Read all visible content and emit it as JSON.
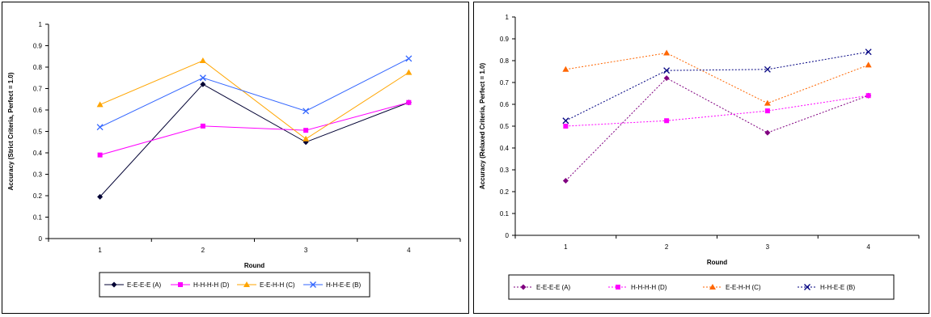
{
  "chart_data": [
    {
      "type": "line",
      "title": "",
      "xlabel": "Round",
      "ylabel": "Accuracy (Strict Criteria, Perfect = 1.0)",
      "categories": [
        "1",
        "2",
        "3",
        "4"
      ],
      "ylim": [
        0,
        1
      ],
      "yticks": [
        "0",
        "0.1",
        "0.2",
        "0.3",
        "0.4",
        "0.5",
        "0.6",
        "0.7",
        "0.8",
        "0.9",
        "1"
      ],
      "grid": false,
      "legend": "bottom",
      "series": [
        {
          "name": "E-E-E-E (A)",
          "values": [
            0.195,
            0.72,
            0.45,
            0.635
          ],
          "color": "#000033",
          "marker": "diamond",
          "dash": "solid"
        },
        {
          "name": "H-H-H-H (D)",
          "values": [
            0.39,
            0.525,
            0.505,
            0.635
          ],
          "color": "#FF00FF",
          "marker": "square",
          "dash": "solid"
        },
        {
          "name": "E-E-H-H (C)",
          "values": [
            0.625,
            0.83,
            0.465,
            0.775
          ],
          "color": "#FFA500",
          "marker": "triangle",
          "dash": "solid"
        },
        {
          "name": "H-H-E-E (B)",
          "values": [
            0.52,
            0.75,
            0.595,
            0.84
          ],
          "color": "#3366FF",
          "marker": "x",
          "dash": "solid"
        }
      ]
    },
    {
      "type": "line",
      "title": "",
      "xlabel": "Round",
      "ylabel": "Accuracy (Relaxed Criteria, Perfect = 1.0)",
      "categories": [
        "1",
        "2",
        "3",
        "4"
      ],
      "ylim": [
        0,
        1
      ],
      "yticks": [
        "0",
        "0.1",
        "0.2",
        "0.3",
        "0.4",
        "0.5",
        "0.6",
        "0.7",
        "0.8",
        "0.9",
        "1"
      ],
      "grid": false,
      "legend": "bottom",
      "series": [
        {
          "name": "E-E-E-E (A)",
          "values": [
            0.25,
            0.72,
            0.47,
            0.64
          ],
          "color": "#800080",
          "marker": "diamond",
          "dash": "dotted"
        },
        {
          "name": "H-H-H-H (D)",
          "values": [
            0.5,
            0.525,
            0.57,
            0.64
          ],
          "color": "#FF00FF",
          "marker": "square",
          "dash": "dotted"
        },
        {
          "name": "E-E-H-H (C)",
          "values": [
            0.76,
            0.835,
            0.605,
            0.78
          ],
          "color": "#FF6600",
          "marker": "triangle",
          "dash": "dotted"
        },
        {
          "name": "H-H-E-E (B)",
          "values": [
            0.525,
            0.755,
            0.76,
            0.84
          ],
          "color": "#000080",
          "marker": "x",
          "dash": "dotted"
        }
      ]
    }
  ]
}
